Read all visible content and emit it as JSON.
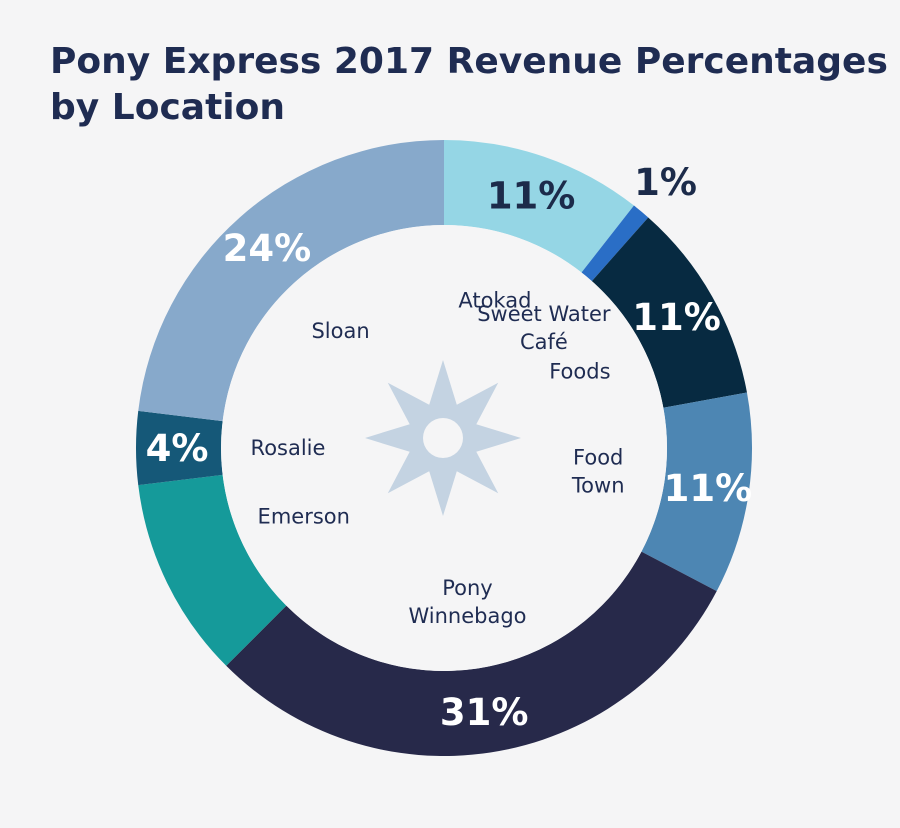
{
  "chart_data": {
    "type": "pie",
    "variant": "donut",
    "title_lines": [
      "Pony Express 2017 Revenue Percentages",
      "by Location"
    ],
    "slices": [
      {
        "location_lines": [
          "Atokad"
        ],
        "value": 11,
        "pct_label": "11%",
        "color": "#95d6e5",
        "pct_color": "#1c2b4a"
      },
      {
        "location_lines": [
          "Sweet Water",
          "Café"
        ],
        "value": 1,
        "pct_label": "1%",
        "color": "#2a6ec6",
        "pct_color": "#1c2b4a"
      },
      {
        "location_lines": [
          "Foods"
        ],
        "value": 11,
        "pct_label": "11%",
        "color": "#072a41",
        "pct_color": "#ffffff"
      },
      {
        "location_lines": [
          "Food",
          "Town"
        ],
        "value": 11,
        "pct_label": "11%",
        "color": "#4d86b3",
        "pct_color": "#ffffff"
      },
      {
        "location_lines": [
          "Pony",
          "Winnebago"
        ],
        "value": 31,
        "pct_label": "31%",
        "color": "#27294a",
        "pct_color": "#ffffff"
      },
      {
        "location_lines": [
          "Emerson"
        ],
        "value": 11,
        "pct_label": "",
        "color": "#159a9a",
        "pct_color": "#ffffff"
      },
      {
        "location_lines": [
          "Rosalie"
        ],
        "value": 4,
        "pct_label": "4%",
        "color": "#155878",
        "pct_color": "#ffffff"
      },
      {
        "location_lines": [
          "Sloan"
        ],
        "value": 24,
        "pct_label": "24%",
        "color": "#87a9cb",
        "pct_color": "#ffffff"
      }
    ],
    "start_angle_deg": 0,
    "direction": "clockwise"
  },
  "colors": {
    "title": "#1f2c52",
    "location_text": "#1f2c52",
    "background": "#f5f5f6",
    "center_icon": "#c4d3e2"
  },
  "center_icon": "compass-star-icon"
}
